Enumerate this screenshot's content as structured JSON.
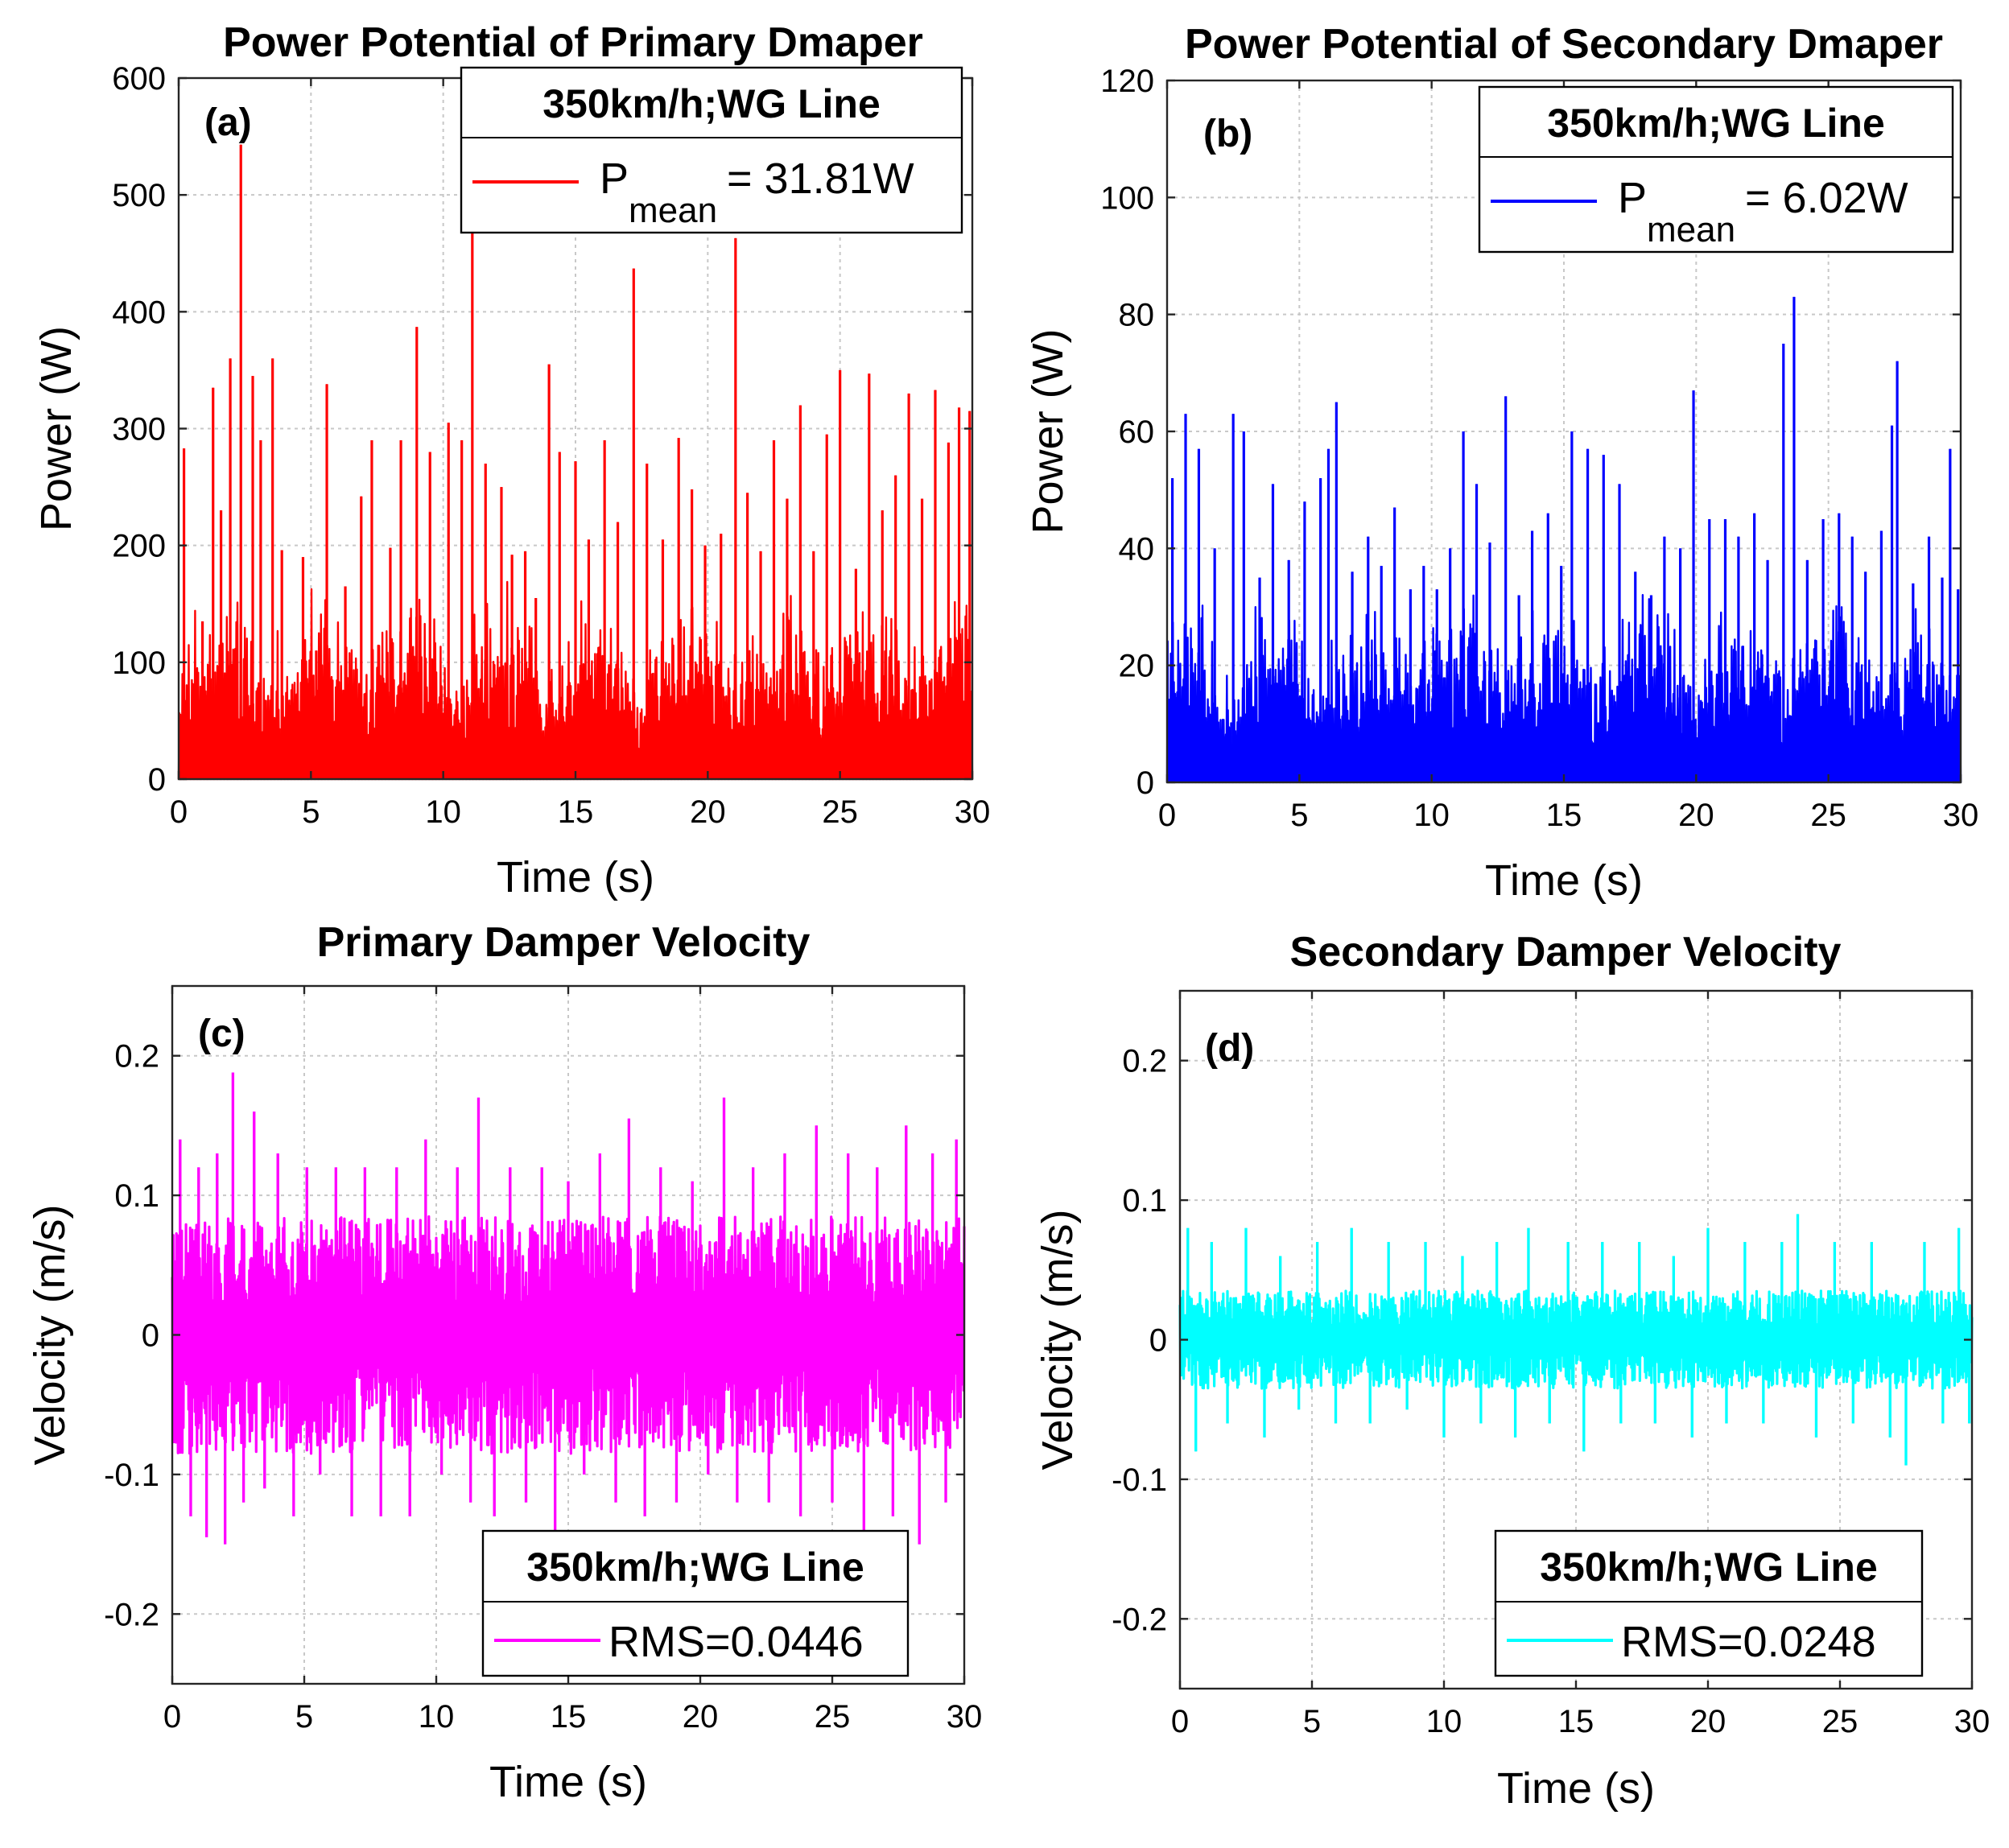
{
  "chart_data": [
    {
      "id": "a",
      "type": "line",
      "title": "Power Potential of Primary Dmaper",
      "panel_label": "(a)",
      "xlabel": "Time (s)",
      "ylabel": "Power (W)",
      "xlim": [
        0,
        30
      ],
      "ylim": [
        0,
        600
      ],
      "xticks": [
        0,
        5,
        10,
        15,
        20,
        25,
        30
      ],
      "yticks": [
        0,
        100,
        200,
        300,
        400,
        500,
        600
      ],
      "ytick_labels": [
        "0",
        "100",
        "200",
        "300",
        "400",
        "500",
        "600"
      ],
      "grid": true,
      "color": "#ff0000",
      "baseline": 0,
      "peaks": [
        [
          0.2,
          283
        ],
        [
          0.9,
          135
        ],
        [
          1.3,
          335
        ],
        [
          1.6,
          230
        ],
        [
          1.95,
          360
        ],
        [
          2.35,
          543
        ],
        [
          2.8,
          345
        ],
        [
          3.1,
          290
        ],
        [
          3.55,
          360
        ],
        [
          3.9,
          196
        ],
        [
          4.7,
          190
        ],
        [
          5.2,
          110
        ],
        [
          5.6,
          338
        ],
        [
          6.3,
          165
        ],
        [
          6.9,
          242
        ],
        [
          7.3,
          290
        ],
        [
          8.0,
          198
        ],
        [
          8.4,
          290
        ],
        [
          9.0,
          387
        ],
        [
          9.5,
          280
        ],
        [
          10.2,
          305
        ],
        [
          10.7,
          290
        ],
        [
          11.1,
          472
        ],
        [
          11.6,
          270
        ],
        [
          12.2,
          250
        ],
        [
          12.6,
          192
        ],
        [
          13.1,
          195
        ],
        [
          13.5,
          155
        ],
        [
          14.0,
          355
        ],
        [
          14.4,
          280
        ],
        [
          15.0,
          272
        ],
        [
          15.5,
          205
        ],
        [
          16.1,
          290
        ],
        [
          16.6,
          220
        ],
        [
          17.2,
          437
        ],
        [
          17.7,
          270
        ],
        [
          18.3,
          205
        ],
        [
          18.9,
          292
        ],
        [
          19.4,
          248
        ],
        [
          19.9,
          200
        ],
        [
          20.5,
          210
        ],
        [
          21.05,
          463
        ],
        [
          21.5,
          245
        ],
        [
          22.0,
          195
        ],
        [
          22.5,
          290
        ],
        [
          23.0,
          240
        ],
        [
          23.5,
          320
        ],
        [
          24.0,
          195
        ],
        [
          24.5,
          295
        ],
        [
          25.0,
          350
        ],
        [
          25.6,
          180
        ],
        [
          26.1,
          347
        ],
        [
          26.6,
          230
        ],
        [
          27.1,
          260
        ],
        [
          27.6,
          330
        ],
        [
          28.1,
          240
        ],
        [
          28.6,
          333
        ],
        [
          29.1,
          288
        ],
        [
          29.5,
          318
        ],
        [
          29.9,
          315
        ]
      ],
      "legend": {
        "position": "top-right",
        "title": "350km/h;WG Line",
        "entry_main": "P",
        "entry_sub": "mean",
        "entry_value": " = 31.81W"
      }
    },
    {
      "id": "b",
      "type": "line",
      "title": "Power Potential of Secondary Dmaper",
      "panel_label": "(b)",
      "xlabel": "Time (s)",
      "ylabel": "Power (W)",
      "xlim": [
        0,
        30
      ],
      "ylim": [
        0,
        120
      ],
      "xticks": [
        0,
        5,
        10,
        15,
        20,
        25,
        30
      ],
      "yticks": [
        0,
        20,
        40,
        60,
        80,
        100,
        120
      ],
      "ytick_labels": [
        "0",
        "20",
        "40",
        "60",
        "80",
        "100",
        "120"
      ],
      "grid": true,
      "color": "#0000ff",
      "baseline": 0,
      "peaks": [
        [
          0.2,
          52
        ],
        [
          0.7,
          63
        ],
        [
          1.2,
          57
        ],
        [
          1.8,
          40
        ],
        [
          2.5,
          63
        ],
        [
          2.9,
          60
        ],
        [
          3.5,
          35
        ],
        [
          4.0,
          51
        ],
        [
          4.6,
          38
        ],
        [
          5.2,
          48
        ],
        [
          5.8,
          52
        ],
        [
          6.1,
          57
        ],
        [
          6.4,
          65
        ],
        [
          7.0,
          36
        ],
        [
          7.6,
          42
        ],
        [
          8.1,
          37
        ],
        [
          8.6,
          47
        ],
        [
          9.2,
          33
        ],
        [
          9.7,
          37
        ],
        [
          10.2,
          33
        ],
        [
          10.7,
          40
        ],
        [
          11.2,
          60
        ],
        [
          11.7,
          51
        ],
        [
          12.2,
          41
        ],
        [
          12.8,
          66
        ],
        [
          13.3,
          32
        ],
        [
          13.8,
          43
        ],
        [
          14.4,
          46
        ],
        [
          14.9,
          37
        ],
        [
          15.3,
          60
        ],
        [
          15.9,
          57
        ],
        [
          16.5,
          56
        ],
        [
          17.1,
          51
        ],
        [
          17.7,
          36
        ],
        [
          18.3,
          32
        ],
        [
          18.8,
          42
        ],
        [
          19.4,
          40
        ],
        [
          19.9,
          67
        ],
        [
          20.5,
          45
        ],
        [
          21.1,
          45
        ],
        [
          21.6,
          42
        ],
        [
          22.2,
          46
        ],
        [
          22.7,
          38
        ],
        [
          23.3,
          75
        ],
        [
          23.7,
          83
        ],
        [
          24.2,
          38
        ],
        [
          24.8,
          45
        ],
        [
          25.4,
          46
        ],
        [
          25.9,
          42
        ],
        [
          26.4,
          36
        ],
        [
          27.0,
          43
        ],
        [
          27.4,
          61
        ],
        [
          27.6,
          72
        ],
        [
          28.2,
          34
        ],
        [
          28.8,
          42
        ],
        [
          29.3,
          35
        ],
        [
          29.6,
          57
        ],
        [
          29.9,
          33
        ]
      ],
      "legend": {
        "position": "top-right",
        "title": "350km/h;WG Line",
        "entry_main": "P",
        "entry_sub": "mean",
        "entry_value": " = 6.02W"
      }
    },
    {
      "id": "c",
      "type": "line",
      "title": "Primary Damper Velocity",
      "panel_label": "(c)",
      "xlabel": "Time (s)",
      "ylabel": "Velocity (m/s)",
      "xlim": [
        0,
        30
      ],
      "ylim": [
        -0.25,
        0.25
      ],
      "xticks": [
        0,
        5,
        10,
        15,
        20,
        25,
        30
      ],
      "yticks": [
        -0.2,
        -0.1,
        0,
        0.1,
        0.2
      ],
      "ytick_labels": [
        "-0.2",
        "-0.1",
        "0",
        "0.1",
        "0.2"
      ],
      "grid": true,
      "color": "#ff00ff",
      "baseline": 0,
      "peaks": [
        [
          0.3,
          0.14
        ],
        [
          0.7,
          -0.13
        ],
        [
          1.0,
          0.12
        ],
        [
          1.3,
          -0.145
        ],
        [
          1.7,
          0.13
        ],
        [
          2.0,
          -0.15
        ],
        [
          2.3,
          0.188
        ],
        [
          2.7,
          -0.12
        ],
        [
          3.1,
          0.16
        ],
        [
          3.5,
          -0.11
        ],
        [
          4.0,
          0.13
        ],
        [
          4.6,
          -0.13
        ],
        [
          5.1,
          0.12
        ],
        [
          5.6,
          -0.1
        ],
        [
          6.2,
          0.12
        ],
        [
          6.8,
          -0.13
        ],
        [
          7.3,
          0.12
        ],
        [
          7.9,
          -0.13
        ],
        [
          8.5,
          0.12
        ],
        [
          9.0,
          -0.13
        ],
        [
          9.6,
          0.14
        ],
        [
          10.2,
          -0.1
        ],
        [
          10.8,
          0.12
        ],
        [
          11.3,
          -0.12
        ],
        [
          11.6,
          0.17
        ],
        [
          12.2,
          -0.13
        ],
        [
          12.8,
          0.12
        ],
        [
          13.4,
          -0.12
        ],
        [
          14.0,
          0.12
        ],
        [
          14.5,
          -0.14
        ],
        [
          15.0,
          0.11
        ],
        [
          15.6,
          -0.1
        ],
        [
          16.2,
          0.13
        ],
        [
          16.8,
          -0.12
        ],
        [
          17.3,
          0.155
        ],
        [
          17.9,
          -0.13
        ],
        [
          18.5,
          0.12
        ],
        [
          19.1,
          -0.12
        ],
        [
          19.7,
          0.11
        ],
        [
          20.3,
          -0.1
        ],
        [
          20.9,
          0.17
        ],
        [
          21.4,
          -0.12
        ],
        [
          22.0,
          0.12
        ],
        [
          22.6,
          -0.12
        ],
        [
          23.2,
          0.13
        ],
        [
          23.8,
          -0.13
        ],
        [
          24.4,
          0.15
        ],
        [
          25.0,
          -0.12
        ],
        [
          25.6,
          0.13
        ],
        [
          26.2,
          -0.14
        ],
        [
          26.7,
          0.12
        ],
        [
          27.3,
          -0.13
        ],
        [
          27.8,
          0.15
        ],
        [
          28.3,
          -0.15
        ],
        [
          28.8,
          0.13
        ],
        [
          29.3,
          -0.12
        ],
        [
          29.7,
          0.14
        ]
      ],
      "legend": {
        "position": "bottom-right",
        "title": "350km/h;WG Line",
        "entry": "RMS=0.0446"
      }
    },
    {
      "id": "d",
      "type": "line",
      "title": "Secondary Damper Velocity",
      "panel_label": "(d)",
      "xlabel": "Time (s)",
      "ylabel": "Velocity (m/s)",
      "xlim": [
        0,
        30
      ],
      "ylim": [
        -0.25,
        0.25
      ],
      "xticks": [
        0,
        5,
        10,
        15,
        20,
        25,
        30
      ],
      "yticks": [
        -0.2,
        -0.1,
        0,
        0.1,
        0.2
      ],
      "ytick_labels": [
        "-0.2",
        "-0.1",
        "0",
        "0.1",
        "0.2"
      ],
      "grid": true,
      "color": "#00ffff",
      "baseline": 0,
      "peaks": [
        [
          0.3,
          0.08
        ],
        [
          0.6,
          -0.08
        ],
        [
          1.2,
          0.07
        ],
        [
          1.8,
          -0.06
        ],
        [
          2.5,
          0.08
        ],
        [
          3.2,
          -0.07
        ],
        [
          3.8,
          0.06
        ],
        [
          4.5,
          -0.05
        ],
        [
          5.2,
          0.07
        ],
        [
          5.9,
          -0.06
        ],
        [
          6.5,
          0.08
        ],
        [
          7.2,
          -0.06
        ],
        [
          7.9,
          0.07
        ],
        [
          8.6,
          -0.05
        ],
        [
          9.3,
          0.07
        ],
        [
          10.0,
          -0.07
        ],
        [
          10.7,
          0.06
        ],
        [
          11.4,
          -0.06
        ],
        [
          12.0,
          0.07
        ],
        [
          12.7,
          -0.07
        ],
        [
          13.2,
          0.08
        ],
        [
          14.0,
          -0.06
        ],
        [
          14.7,
          0.07
        ],
        [
          15.3,
          -0.08
        ],
        [
          16.0,
          0.07
        ],
        [
          16.7,
          -0.06
        ],
        [
          17.4,
          0.07
        ],
        [
          18.0,
          -0.06
        ],
        [
          18.7,
          0.06
        ],
        [
          19.4,
          -0.07
        ],
        [
          20.0,
          0.08
        ],
        [
          20.7,
          -0.06
        ],
        [
          21.4,
          0.07
        ],
        [
          22.1,
          -0.06
        ],
        [
          22.8,
          0.07
        ],
        [
          23.4,
          0.09
        ],
        [
          24.1,
          -0.07
        ],
        [
          24.8,
          0.07
        ],
        [
          25.5,
          -0.06
        ],
        [
          26.2,
          0.07
        ],
        [
          26.9,
          -0.07
        ],
        [
          27.5,
          -0.09
        ],
        [
          28.2,
          0.07
        ],
        [
          28.9,
          -0.06
        ],
        [
          29.5,
          0.08
        ],
        [
          29.9,
          -0.06
        ]
      ],
      "legend": {
        "position": "bottom-right",
        "title": "350km/h;WG Line",
        "entry": "RMS=0.0248"
      }
    }
  ]
}
